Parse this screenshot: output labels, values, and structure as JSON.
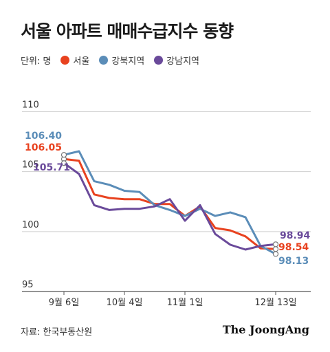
{
  "title": "서울 아파트 매매수급지수 동향",
  "legend": {
    "unit": "단위: 명",
    "items": [
      {
        "label": "서울",
        "color": "#e8421f"
      },
      {
        "label": "강북지역",
        "color": "#5b8db8"
      },
      {
        "label": "강남지역",
        "color": "#6a4a9a"
      }
    ]
  },
  "source": "자료: 한국부동산원",
  "brand": "The JoongAng",
  "chart_data": {
    "type": "line",
    "title": "서울 아파트 매매수급지수 동향",
    "xlabel": "",
    "ylabel": "",
    "ylim": [
      95,
      111
    ],
    "yticks": [
      95,
      100,
      105,
      110
    ],
    "x_tick_labels": [
      {
        "index": 0,
        "label": "9월 6일"
      },
      {
        "index": 4,
        "label": "10월 4일"
      },
      {
        "index": 8,
        "label": "11월 1일"
      },
      {
        "index": 14,
        "label": "12월 13일"
      }
    ],
    "grid": true,
    "legend_position": "top-left",
    "series": [
      {
        "name": "서울",
        "color": "#e8421f",
        "values": [
          106.05,
          105.9,
          103.1,
          102.8,
          102.7,
          102.7,
          102.3,
          102.3,
          101.3,
          102.1,
          100.3,
          100.1,
          99.6,
          98.6,
          98.54
        ],
        "start_label": "106.05",
        "end_label": "98.54"
      },
      {
        "name": "강북지역",
        "color": "#5b8db8",
        "values": [
          106.4,
          106.7,
          104.2,
          103.9,
          103.4,
          103.3,
          102.2,
          101.8,
          101.3,
          101.9,
          101.3,
          101.6,
          101.2,
          98.8,
          98.13
        ],
        "start_label": "106.40",
        "end_label": "98.13"
      },
      {
        "name": "강남지역",
        "color": "#6a4a9a",
        "values": [
          105.71,
          104.8,
          102.2,
          101.8,
          101.9,
          101.9,
          102.1,
          102.7,
          100.9,
          102.2,
          99.8,
          98.9,
          98.5,
          98.8,
          98.94
        ],
        "start_label": "105.71",
        "end_label": "98.94"
      }
    ]
  }
}
